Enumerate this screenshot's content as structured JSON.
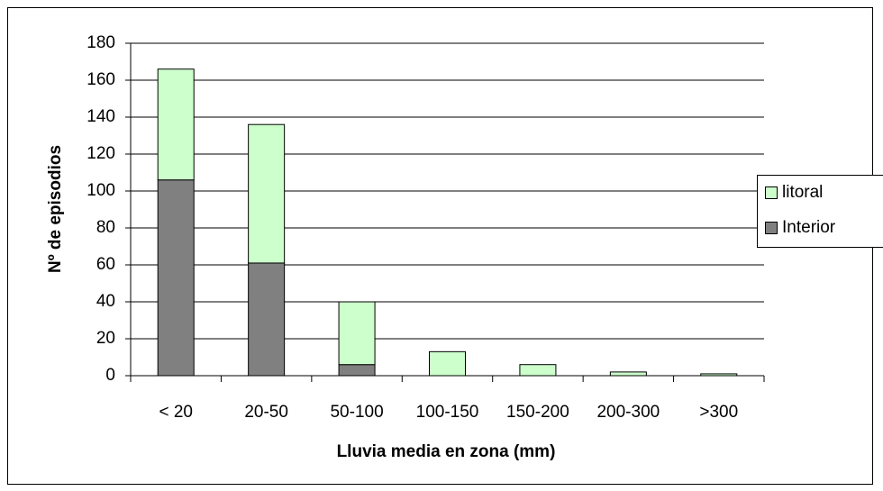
{
  "chart_data": {
    "type": "stacked_bar",
    "xlabel": "Lluvia media en zona (mm)",
    "ylabel": "Nº de episodios",
    "categories": [
      "< 20",
      "20-50",
      "50-100",
      "100-150",
      "150-200",
      "200-300",
      ">300"
    ],
    "series": [
      {
        "name": "Interior",
        "color": "#808080",
        "values": [
          106,
          61,
          6,
          0,
          0,
          0,
          0
        ]
      },
      {
        "name": "litoral",
        "color": "#ccffcc",
        "values": [
          60,
          75,
          34,
          13,
          6,
          2,
          1
        ]
      }
    ],
    "ylim": [
      0,
      180
    ],
    "yticks": [
      0,
      20,
      40,
      60,
      80,
      100,
      120,
      140,
      160,
      180
    ],
    "grid": true,
    "legend": "right"
  }
}
